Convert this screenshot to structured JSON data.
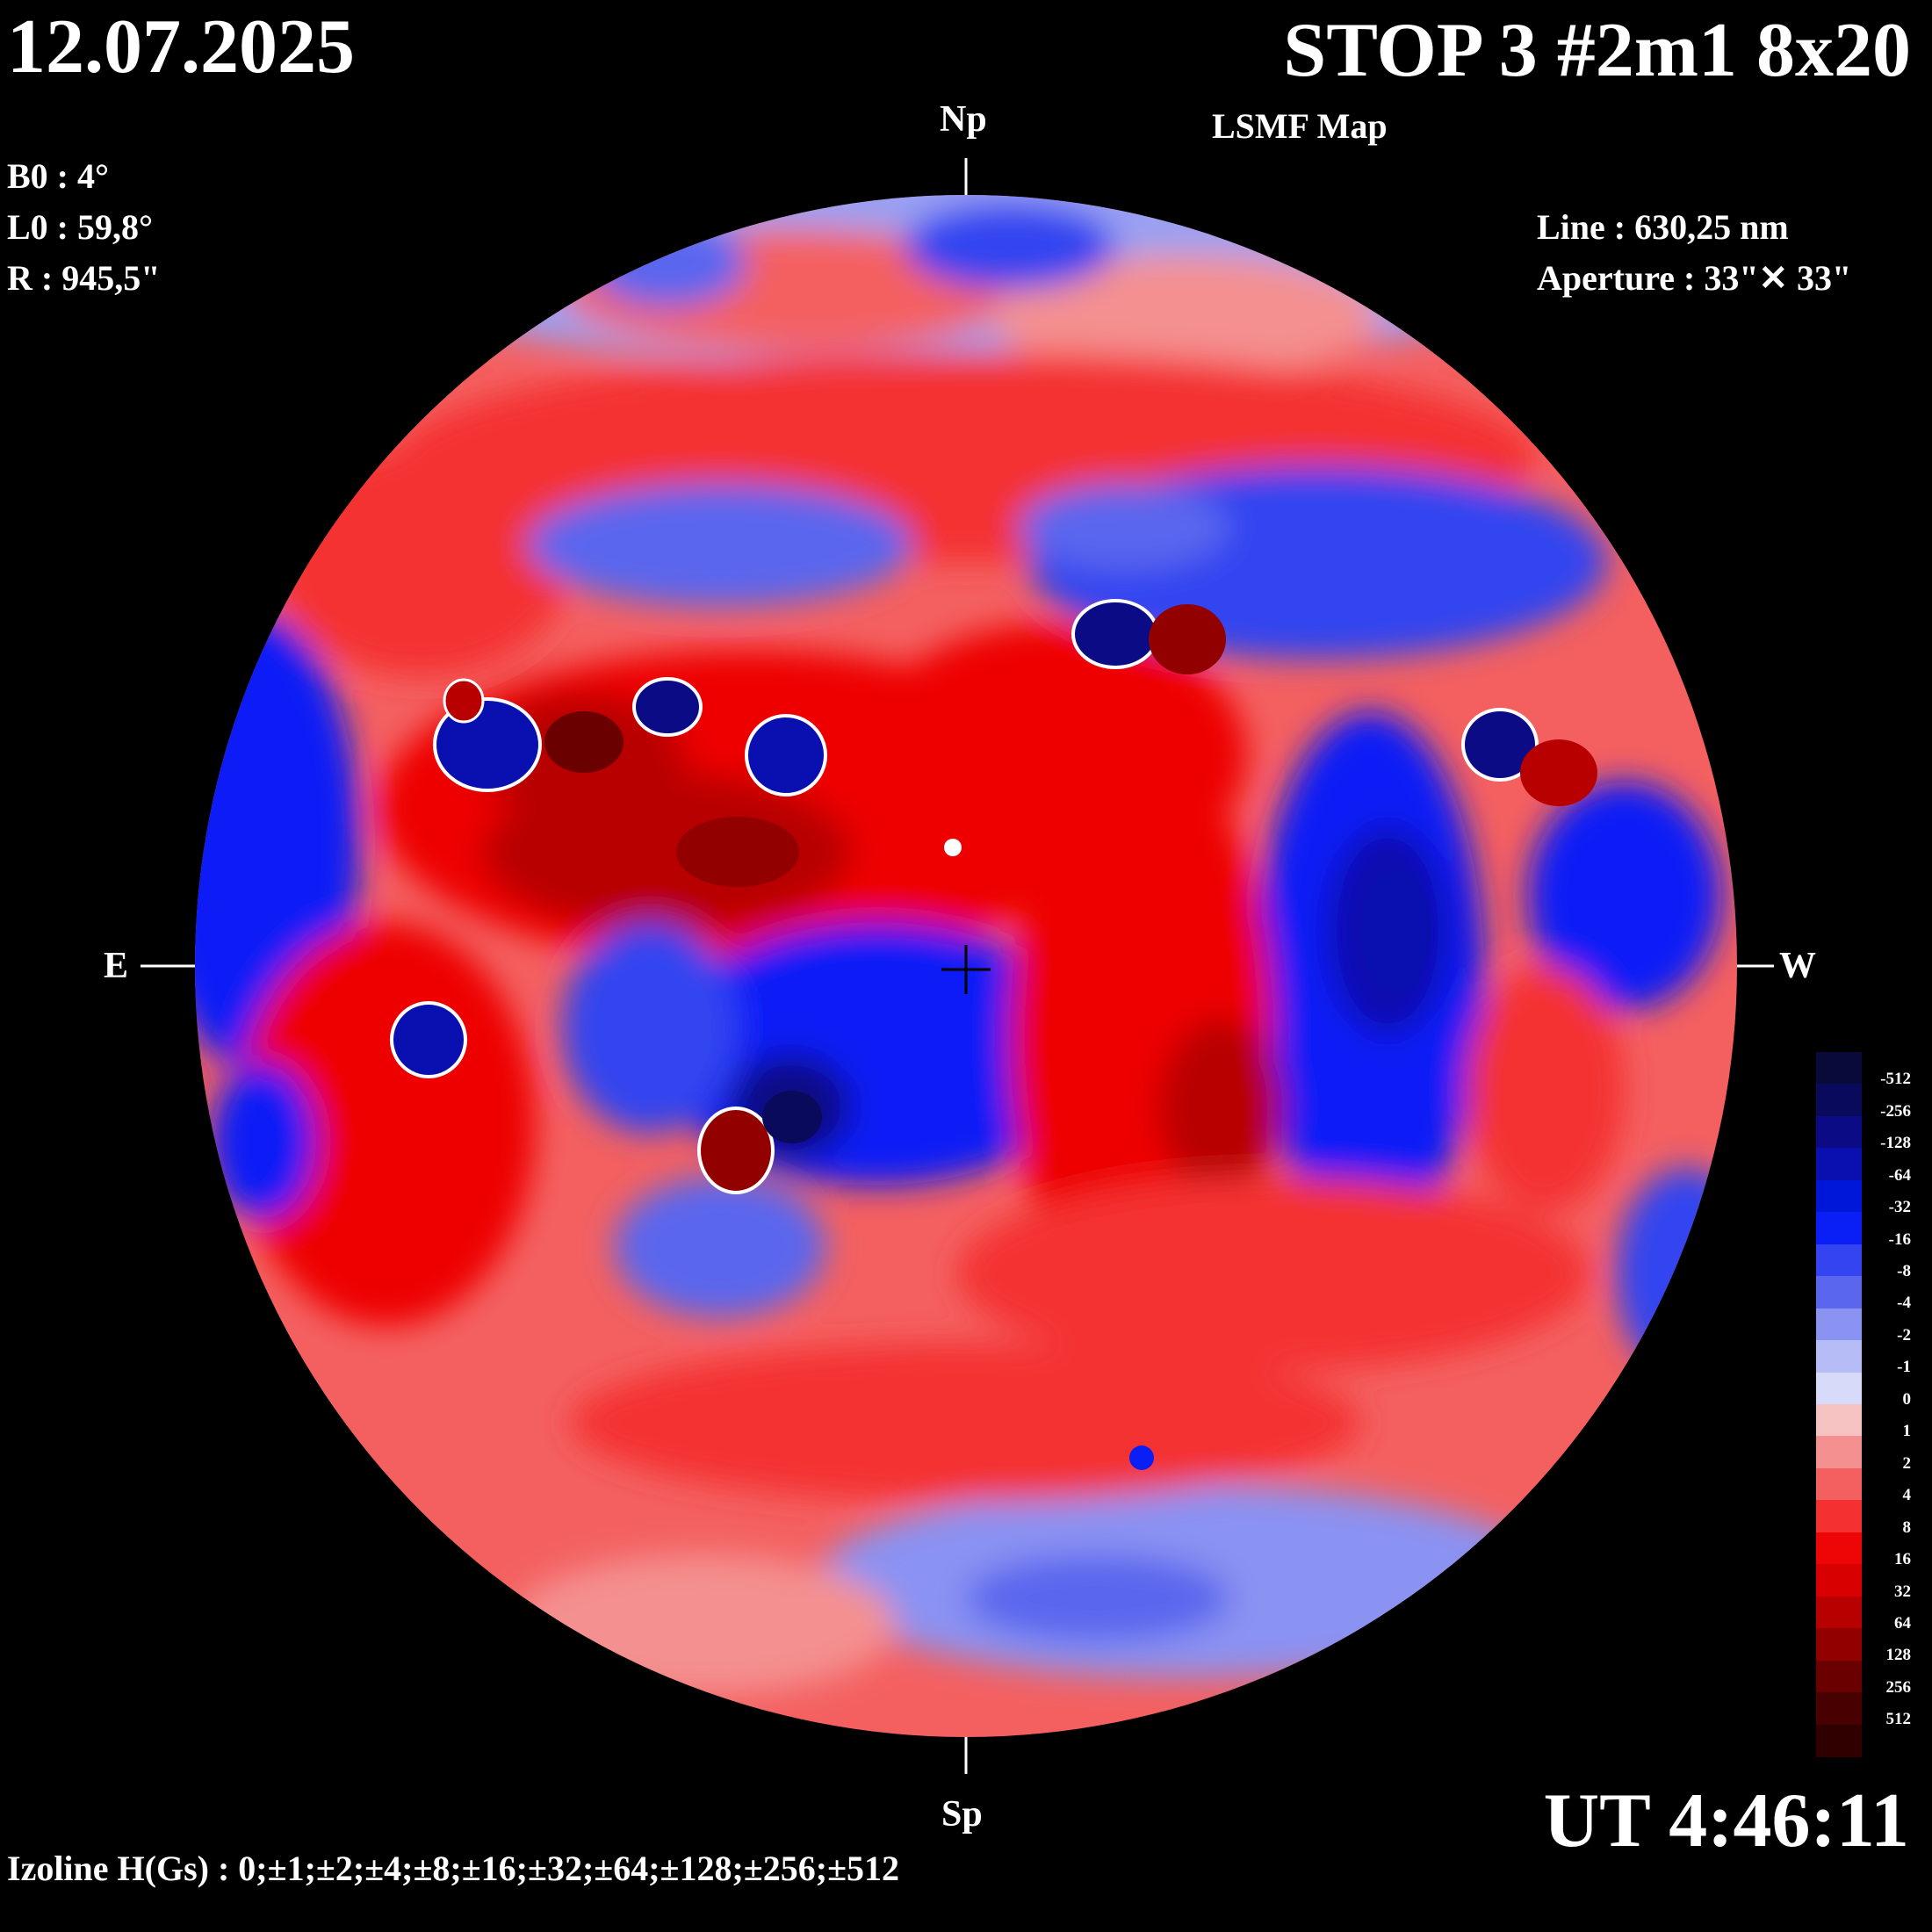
{
  "header": {
    "date": "12.07.2025",
    "title": "STOP 3 #2m1 8x20",
    "map_type": "LSMF  Map"
  },
  "observation": {
    "b0": "B0 : 4°",
    "l0": "L0 : 59,8°",
    "r": "R  : 945,5\"",
    "line": "Line :  630,25 nm",
    "aperture": "Aperture : 33\"✕ 33\""
  },
  "compass": {
    "north": "Np",
    "south": "Sp",
    "east": "E",
    "west": "W"
  },
  "time": "UT 4:46:11",
  "izoline": "Izoline H(Gs) : 0;±1;±2;±4;±8;±16;±32;±64;±128;±256;±512",
  "legend": {
    "levels": [
      {
        "label": "-512",
        "color": "#0a0a3a"
      },
      {
        "label": "-256",
        "color": "#0a0a5c"
      },
      {
        "label": "-128",
        "color": "#0b0b85"
      },
      {
        "label": "-64",
        "color": "#0a10b0"
      },
      {
        "label": "-32",
        "color": "#0016d8"
      },
      {
        "label": "-16",
        "color": "#0a1ef6"
      },
      {
        "label": "-8",
        "color": "#3344f0"
      },
      {
        "label": "-4",
        "color": "#5a66ee"
      },
      {
        "label": "-2",
        "color": "#8a92f2"
      },
      {
        "label": "-1",
        "color": "#b6bcf6"
      },
      {
        "label": "0",
        "color": "#d8dafa"
      },
      {
        "label": "1",
        "color": "#f6c2c2"
      },
      {
        "label": "2",
        "color": "#f49090"
      },
      {
        "label": "4",
        "color": "#f46060"
      },
      {
        "label": "8",
        "color": "#f43030"
      },
      {
        "label": "16",
        "color": "#ee0606"
      },
      {
        "label": "32",
        "color": "#d80000"
      },
      {
        "label": "64",
        "color": "#b80000"
      },
      {
        "label": "128",
        "color": "#920000"
      },
      {
        "label": "256",
        "color": "#6a0000"
      },
      {
        "label": "512",
        "color": "#480000"
      },
      {
        "label": "",
        "color": "#300000"
      }
    ]
  }
}
